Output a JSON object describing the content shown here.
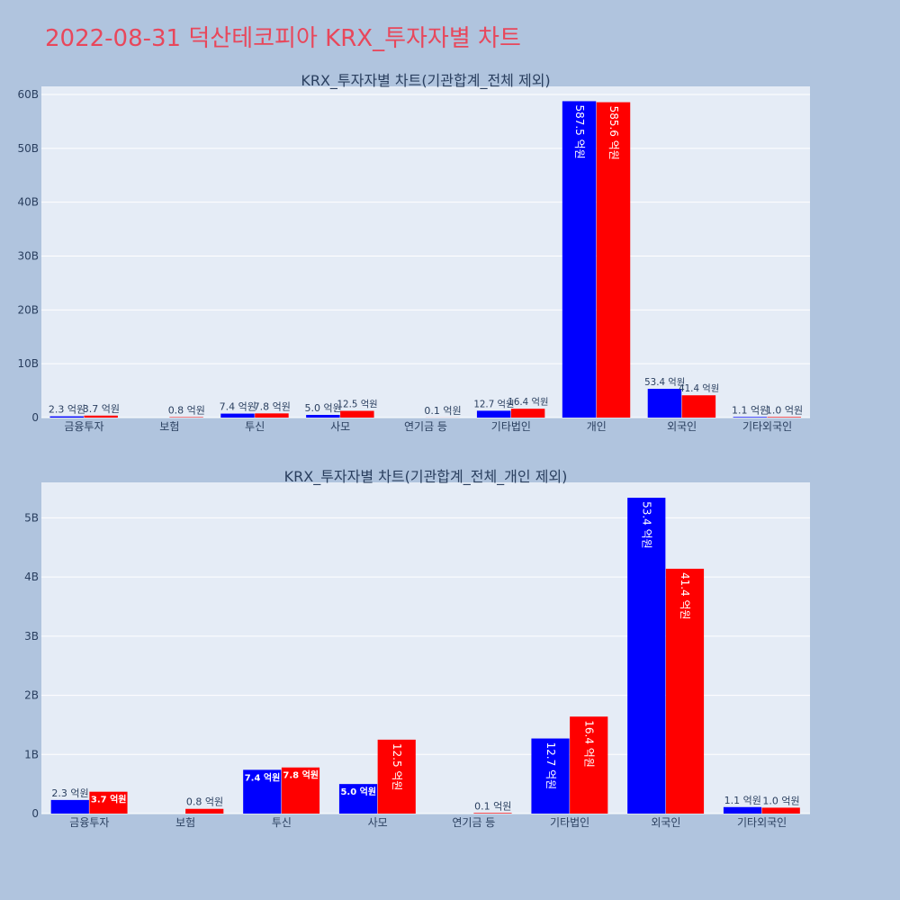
{
  "page_title": "2022-08-31 덕산테코피아 KRX_투자자별 차트",
  "colors": {
    "bg": "#b0c4de",
    "plot_bg": "#e5ecf6",
    "buy": "#0000ff",
    "sell": "#ff0000",
    "title": "#e8475b"
  },
  "chart_data": [
    {
      "type": "bar",
      "title": "KRX_투자자별 차트(기관합계_전체 제외)",
      "categories": [
        "금융투자",
        "보험",
        "투신",
        "사모",
        "연기금 등",
        "기타법인",
        "개인",
        "외국인",
        "기타외국인"
      ],
      "series": [
        {
          "color": "#0000ff",
          "values": [
            230000000,
            0,
            740000000,
            500000000,
            0,
            1270000000,
            58750000000,
            5340000000,
            110000000
          ],
          "labels": [
            "2.3 억원",
            "",
            "7.4 억원",
            "5.0 억원",
            "",
            "12.7 억원",
            "587.5 억원",
            "53.4 억원",
            "1.1 억원"
          ]
        },
        {
          "color": "#ff0000",
          "values": [
            370000000,
            80000000,
            780000000,
            1250000000,
            10000000,
            1640000000,
            58560000000,
            4140000000,
            100000000
          ],
          "labels": [
            "3.7 억원",
            "0.8 억원",
            "7.8 억원",
            "12.5 억원",
            "0.1 억원",
            "16.4 억원",
            "585.6 억원",
            "41.4 억원",
            "1.0 억원"
          ]
        }
      ],
      "ylim": [
        0,
        61500000000
      ],
      "ytick_values": [
        0,
        10000000000,
        20000000000,
        30000000000,
        40000000000,
        50000000000,
        60000000000
      ],
      "ytick_labels": [
        "0",
        "10B",
        "20B",
        "30B",
        "40B",
        "50B",
        "60B"
      ],
      "grid": true
    },
    {
      "type": "bar",
      "title": "KRX_투자자별 차트(기관합계_전체_개인 제외)",
      "categories": [
        "금융투자",
        "보험",
        "투신",
        "사모",
        "연기금 등",
        "기타법인",
        "외국인",
        "기타외국인"
      ],
      "series": [
        {
          "color": "#0000ff",
          "values": [
            230000000,
            0,
            740000000,
            500000000,
            0,
            1270000000,
            5340000000,
            110000000
          ],
          "labels": [
            "2.3 억원",
            "",
            "7.4 억원",
            "5.0 억원",
            "",
            "12.7 억원",
            "53.4 억원",
            "1.1 억원"
          ]
        },
        {
          "color": "#ff0000",
          "values": [
            370000000,
            80000000,
            780000000,
            1250000000,
            10000000,
            1640000000,
            4140000000,
            100000000
          ],
          "labels": [
            "3.7 억원",
            "0.8 억원",
            "7.8 억원",
            "12.5 억원",
            "0.1 억원",
            "16.4 억원",
            "41.4 억원",
            "1.0 억원"
          ]
        }
      ],
      "ylim": [
        0,
        5600000000
      ],
      "ytick_values": [
        0,
        1000000000,
        2000000000,
        3000000000,
        4000000000,
        5000000000
      ],
      "ytick_labels": [
        "0",
        "1B",
        "2B",
        "3B",
        "4B",
        "5B"
      ],
      "grid": true
    }
  ]
}
